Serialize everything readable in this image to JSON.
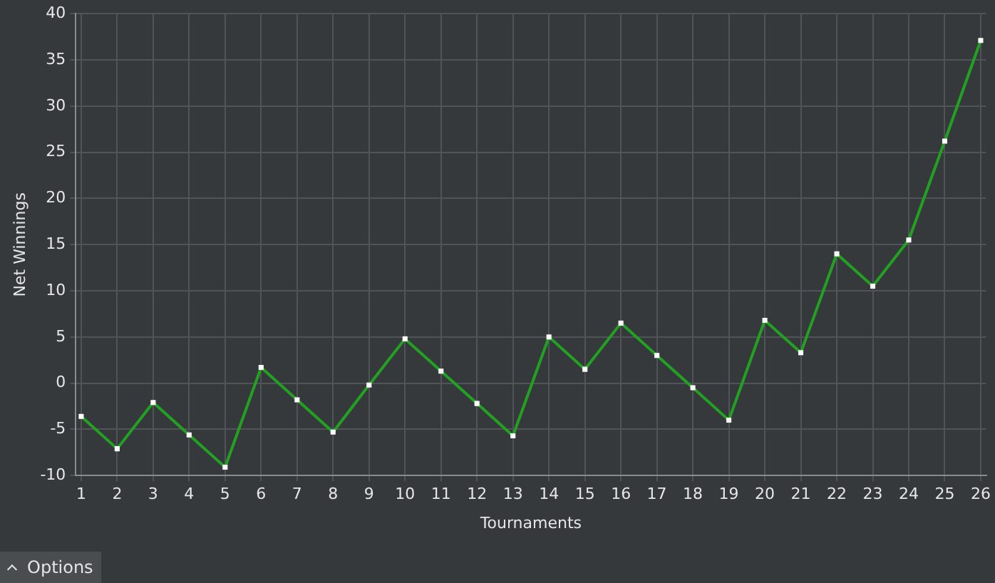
{
  "chart_data": {
    "type": "line",
    "xlabel": "Tournaments",
    "ylabel": "Net Winnings",
    "x": [
      1,
      2,
      3,
      4,
      5,
      6,
      7,
      8,
      9,
      10,
      11,
      12,
      13,
      14,
      15,
      16,
      17,
      18,
      19,
      20,
      21,
      22,
      23,
      24,
      25,
      26
    ],
    "series": [
      {
        "color": "#22a022",
        "values": [
          -3.6,
          -7.1,
          -2.1,
          -5.6,
          -9.1,
          1.7,
          -1.8,
          -5.3,
          -0.2,
          4.8,
          1.3,
          -2.2,
          -5.7,
          5.0,
          1.5,
          6.5,
          3.0,
          -0.5,
          -4.0,
          6.8,
          3.3,
          14.0,
          10.5,
          15.5,
          26.2,
          37.1
        ]
      }
    ],
    "xlim": [
      0.85,
      26.15
    ],
    "xticks": [
      1,
      2,
      3,
      4,
      5,
      6,
      7,
      8,
      9,
      10,
      11,
      12,
      13,
      14,
      15,
      16,
      17,
      18,
      19,
      20,
      21,
      22,
      23,
      24,
      25,
      26
    ],
    "ylim": [
      -10,
      40
    ],
    "yticks": [
      -10,
      -5,
      0,
      5,
      10,
      15,
      20,
      25,
      30,
      35,
      40
    ],
    "grid": true,
    "legend": false,
    "marker": "square",
    "line_style": "solid",
    "annotations": [
      "Options"
    ]
  }
}
